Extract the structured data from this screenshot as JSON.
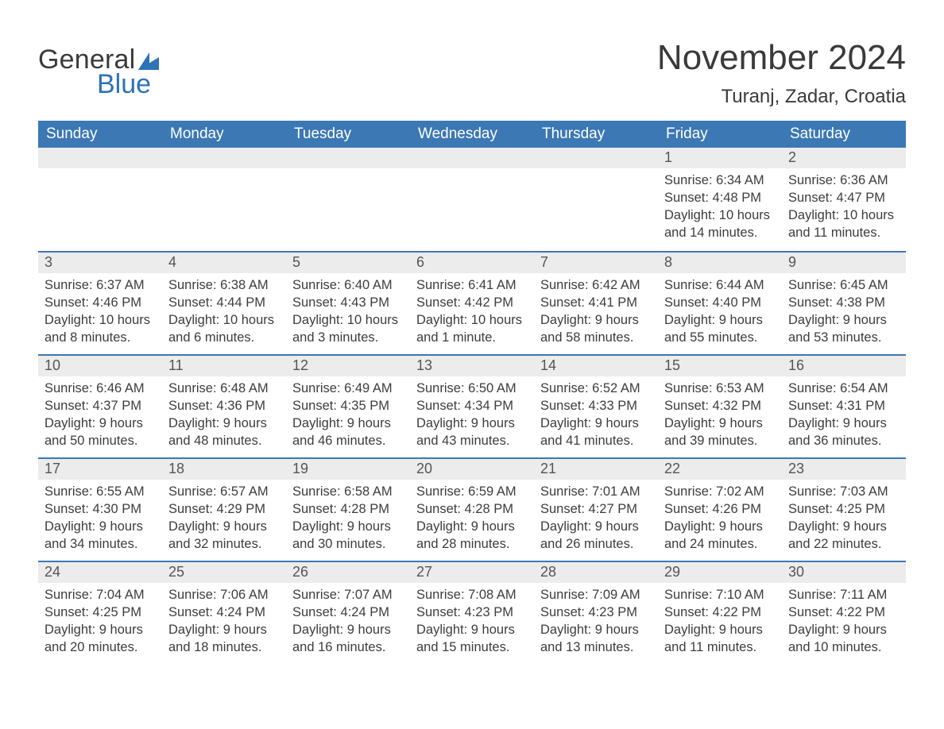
{
  "brand": {
    "word1": "General",
    "word2": "Blue",
    "sail_color": "#2d73b8"
  },
  "title": "November 2024",
  "location": "Turanj, Zadar, Croatia",
  "colors": {
    "header_bg": "#3c78b4",
    "header_text": "#ffffff",
    "day_head_bg": "#ececec",
    "day_head_border": "#3c78b4",
    "body_text": "#3d3d3d",
    "page_bg": "#ffffff"
  },
  "typography": {
    "title_fontsize": 44,
    "location_fontsize": 24,
    "weekday_fontsize": 19,
    "daynum_fontsize": 18,
    "body_fontsize": 16.5
  },
  "weekdays": [
    "Sunday",
    "Monday",
    "Tuesday",
    "Wednesday",
    "Thursday",
    "Friday",
    "Saturday"
  ],
  "weeks": [
    [
      null,
      null,
      null,
      null,
      null,
      {
        "n": "1",
        "sunrise": "6:34 AM",
        "sunset": "4:48 PM",
        "daylight": "10 hours and 14 minutes."
      },
      {
        "n": "2",
        "sunrise": "6:36 AM",
        "sunset": "4:47 PM",
        "daylight": "10 hours and 11 minutes."
      }
    ],
    [
      {
        "n": "3",
        "sunrise": "6:37 AM",
        "sunset": "4:46 PM",
        "daylight": "10 hours and 8 minutes."
      },
      {
        "n": "4",
        "sunrise": "6:38 AM",
        "sunset": "4:44 PM",
        "daylight": "10 hours and 6 minutes."
      },
      {
        "n": "5",
        "sunrise": "6:40 AM",
        "sunset": "4:43 PM",
        "daylight": "10 hours and 3 minutes."
      },
      {
        "n": "6",
        "sunrise": "6:41 AM",
        "sunset": "4:42 PM",
        "daylight": "10 hours and 1 minute."
      },
      {
        "n": "7",
        "sunrise": "6:42 AM",
        "sunset": "4:41 PM",
        "daylight": "9 hours and 58 minutes."
      },
      {
        "n": "8",
        "sunrise": "6:44 AM",
        "sunset": "4:40 PM",
        "daylight": "9 hours and 55 minutes."
      },
      {
        "n": "9",
        "sunrise": "6:45 AM",
        "sunset": "4:38 PM",
        "daylight": "9 hours and 53 minutes."
      }
    ],
    [
      {
        "n": "10",
        "sunrise": "6:46 AM",
        "sunset": "4:37 PM",
        "daylight": "9 hours and 50 minutes."
      },
      {
        "n": "11",
        "sunrise": "6:48 AM",
        "sunset": "4:36 PM",
        "daylight": "9 hours and 48 minutes."
      },
      {
        "n": "12",
        "sunrise": "6:49 AM",
        "sunset": "4:35 PM",
        "daylight": "9 hours and 46 minutes."
      },
      {
        "n": "13",
        "sunrise": "6:50 AM",
        "sunset": "4:34 PM",
        "daylight": "9 hours and 43 minutes."
      },
      {
        "n": "14",
        "sunrise": "6:52 AM",
        "sunset": "4:33 PM",
        "daylight": "9 hours and 41 minutes."
      },
      {
        "n": "15",
        "sunrise": "6:53 AM",
        "sunset": "4:32 PM",
        "daylight": "9 hours and 39 minutes."
      },
      {
        "n": "16",
        "sunrise": "6:54 AM",
        "sunset": "4:31 PM",
        "daylight": "9 hours and 36 minutes."
      }
    ],
    [
      {
        "n": "17",
        "sunrise": "6:55 AM",
        "sunset": "4:30 PM",
        "daylight": "9 hours and 34 minutes."
      },
      {
        "n": "18",
        "sunrise": "6:57 AM",
        "sunset": "4:29 PM",
        "daylight": "9 hours and 32 minutes."
      },
      {
        "n": "19",
        "sunrise": "6:58 AM",
        "sunset": "4:28 PM",
        "daylight": "9 hours and 30 minutes."
      },
      {
        "n": "20",
        "sunrise": "6:59 AM",
        "sunset": "4:28 PM",
        "daylight": "9 hours and 28 minutes."
      },
      {
        "n": "21",
        "sunrise": "7:01 AM",
        "sunset": "4:27 PM",
        "daylight": "9 hours and 26 minutes."
      },
      {
        "n": "22",
        "sunrise": "7:02 AM",
        "sunset": "4:26 PM",
        "daylight": "9 hours and 24 minutes."
      },
      {
        "n": "23",
        "sunrise": "7:03 AM",
        "sunset": "4:25 PM",
        "daylight": "9 hours and 22 minutes."
      }
    ],
    [
      {
        "n": "24",
        "sunrise": "7:04 AM",
        "sunset": "4:25 PM",
        "daylight": "9 hours and 20 minutes."
      },
      {
        "n": "25",
        "sunrise": "7:06 AM",
        "sunset": "4:24 PM",
        "daylight": "9 hours and 18 minutes."
      },
      {
        "n": "26",
        "sunrise": "7:07 AM",
        "sunset": "4:24 PM",
        "daylight": "9 hours and 16 minutes."
      },
      {
        "n": "27",
        "sunrise": "7:08 AM",
        "sunset": "4:23 PM",
        "daylight": "9 hours and 15 minutes."
      },
      {
        "n": "28",
        "sunrise": "7:09 AM",
        "sunset": "4:23 PM",
        "daylight": "9 hours and 13 minutes."
      },
      {
        "n": "29",
        "sunrise": "7:10 AM",
        "sunset": "4:22 PM",
        "daylight": "9 hours and 11 minutes."
      },
      {
        "n": "30",
        "sunrise": "7:11 AM",
        "sunset": "4:22 PM",
        "daylight": "9 hours and 10 minutes."
      }
    ]
  ],
  "labels": {
    "sunrise": "Sunrise:",
    "sunset": "Sunset:",
    "daylight": "Daylight:"
  }
}
